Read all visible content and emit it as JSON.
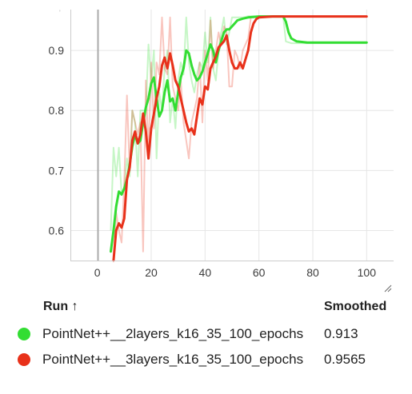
{
  "chart_data": {
    "type": "line",
    "title": "",
    "xlabel": "",
    "ylabel": "",
    "xlim": [
      -10,
      110
    ],
    "ylim": [
      0.55,
      0.968
    ],
    "xticks": [
      0,
      20,
      40,
      60,
      80,
      100
    ],
    "yticks": [
      0.6,
      0.7,
      0.8,
      0.9
    ],
    "grid": true,
    "legend_position": "bottom",
    "series": [
      {
        "name": "PointNet++__2layers_k16_35_100_epochs",
        "color": "#33dd33",
        "smoothed": [
          [
            5,
            0.565
          ],
          [
            6,
            0.6
          ],
          [
            7,
            0.64
          ],
          [
            8,
            0.665
          ],
          [
            9,
            0.66
          ],
          [
            10,
            0.67
          ],
          [
            11,
            0.685
          ],
          [
            12,
            0.71
          ],
          [
            13,
            0.74
          ],
          [
            14,
            0.76
          ],
          [
            15,
            0.745
          ],
          [
            16,
            0.75
          ],
          [
            17,
            0.78
          ],
          [
            18,
            0.805
          ],
          [
            19,
            0.82
          ],
          [
            20,
            0.845
          ],
          [
            21,
            0.855
          ],
          [
            22,
            0.82
          ],
          [
            23,
            0.79
          ],
          [
            24,
            0.8
          ],
          [
            25,
            0.83
          ],
          [
            26,
            0.85
          ],
          [
            27,
            0.815
          ],
          [
            28,
            0.82
          ],
          [
            29,
            0.8
          ],
          [
            30,
            0.83
          ],
          [
            31,
            0.855
          ],
          [
            32,
            0.87
          ],
          [
            33,
            0.9
          ],
          [
            34,
            0.895
          ],
          [
            35,
            0.875
          ],
          [
            36,
            0.86
          ],
          [
            37,
            0.85
          ],
          [
            38,
            0.855
          ],
          [
            39,
            0.865
          ],
          [
            40,
            0.88
          ],
          [
            41,
            0.895
          ],
          [
            42,
            0.91
          ],
          [
            43,
            0.9
          ],
          [
            44,
            0.88
          ],
          [
            45,
            0.9
          ],
          [
            46,
            0.915
          ],
          [
            47,
            0.93
          ],
          [
            48,
            0.935
          ],
          [
            49,
            0.935
          ],
          [
            50,
            0.94
          ],
          [
            51,
            0.945
          ],
          [
            52,
            0.95
          ],
          [
            54,
            0.953
          ],
          [
            56,
            0.955
          ],
          [
            60,
            0.9565
          ],
          [
            65,
            0.9565
          ],
          [
            69,
            0.9565
          ],
          [
            70,
            0.948
          ],
          [
            71,
            0.93
          ],
          [
            72,
            0.92
          ],
          [
            74,
            0.915
          ],
          [
            78,
            0.913
          ],
          [
            100,
            0.913
          ]
        ],
        "raw": [
          [
            5,
            0.6
          ],
          [
            6,
            0.738
          ],
          [
            7,
            0.69
          ],
          [
            8,
            0.738
          ],
          [
            9,
            0.66
          ],
          [
            10,
            0.67
          ],
          [
            11,
            0.72
          ],
          [
            12,
            0.69
          ],
          [
            13,
            0.8
          ],
          [
            14,
            0.78
          ],
          [
            15,
            0.69
          ],
          [
            16,
            0.8
          ],
          [
            17,
            0.8
          ],
          [
            18,
            0.8
          ],
          [
            19,
            0.91
          ],
          [
            20,
            0.85
          ],
          [
            21,
            0.9
          ],
          [
            22,
            0.72
          ],
          [
            23,
            0.83
          ],
          [
            24,
            0.8
          ],
          [
            25,
            0.87
          ],
          [
            26,
            0.9
          ],
          [
            27,
            0.78
          ],
          [
            28,
            0.82
          ],
          [
            29,
            0.77
          ],
          [
            30,
            0.85
          ],
          [
            31,
            0.88
          ],
          [
            32,
            0.86
          ],
          [
            33,
            0.955
          ],
          [
            34,
            0.88
          ],
          [
            35,
            0.85
          ],
          [
            36,
            0.83
          ],
          [
            37,
            0.86
          ],
          [
            38,
            0.88
          ],
          [
            39,
            0.87
          ],
          [
            40,
            0.93
          ],
          [
            41,
            0.88
          ],
          [
            42,
            0.955
          ],
          [
            43,
            0.87
          ],
          [
            44,
            0.85
          ],
          [
            45,
            0.9
          ],
          [
            46,
            0.93
          ],
          [
            47,
            0.955
          ],
          [
            48,
            0.91
          ],
          [
            49,
            0.93
          ],
          [
            50,
            0.955
          ],
          [
            51,
            0.955
          ],
          [
            52,
            0.955
          ],
          [
            54,
            0.955
          ],
          [
            56,
            0.957
          ],
          [
            60,
            0.957
          ],
          [
            69,
            0.957
          ],
          [
            70,
            0.915
          ],
          [
            72,
            0.912
          ],
          [
            100,
            0.912
          ]
        ],
        "value": "0.913"
      },
      {
        "name": "PointNet++__3layers_k16_35_100_epochs",
        "color": "#e8311a",
        "smoothed": [
          [
            6,
            0.55
          ],
          [
            7,
            0.6
          ],
          [
            8,
            0.612
          ],
          [
            9,
            0.605
          ],
          [
            10,
            0.62
          ],
          [
            11,
            0.685
          ],
          [
            12,
            0.705
          ],
          [
            13,
            0.75
          ],
          [
            14,
            0.765
          ],
          [
            15,
            0.745
          ],
          [
            16,
            0.76
          ],
          [
            17,
            0.795
          ],
          [
            18,
            0.765
          ],
          [
            19,
            0.72
          ],
          [
            20,
            0.77
          ],
          [
            21,
            0.795
          ],
          [
            22,
            0.82
          ],
          [
            23,
            0.84
          ],
          [
            24,
            0.875
          ],
          [
            25,
            0.888
          ],
          [
            26,
            0.87
          ],
          [
            27,
            0.895
          ],
          [
            28,
            0.875
          ],
          [
            29,
            0.85
          ],
          [
            30,
            0.84
          ],
          [
            31,
            0.82
          ],
          [
            32,
            0.8
          ],
          [
            33,
            0.78
          ],
          [
            34,
            0.765
          ],
          [
            35,
            0.77
          ],
          [
            36,
            0.76
          ],
          [
            37,
            0.79
          ],
          [
            38,
            0.82
          ],
          [
            39,
            0.81
          ],
          [
            40,
            0.84
          ],
          [
            41,
            0.835
          ],
          [
            42,
            0.87
          ],
          [
            43,
            0.88
          ],
          [
            44,
            0.89
          ],
          [
            45,
            0.905
          ],
          [
            46,
            0.91
          ],
          [
            47,
            0.915
          ],
          [
            48,
            0.925
          ],
          [
            49,
            0.9
          ],
          [
            50,
            0.88
          ],
          [
            51,
            0.87
          ],
          [
            52,
            0.87
          ],
          [
            53,
            0.88
          ],
          [
            54,
            0.87
          ],
          [
            55,
            0.885
          ],
          [
            56,
            0.9
          ],
          [
            57,
            0.93
          ],
          [
            58,
            0.945
          ],
          [
            59,
            0.952
          ],
          [
            60,
            0.955
          ],
          [
            65,
            0.9565
          ],
          [
            100,
            0.9565
          ]
        ],
        "raw": [
          [
            6,
            0.55
          ],
          [
            7,
            0.63
          ],
          [
            8,
            0.6
          ],
          [
            9,
            0.58
          ],
          [
            10,
            0.68
          ],
          [
            11,
            0.825
          ],
          [
            12,
            0.7
          ],
          [
            13,
            0.8
          ],
          [
            14,
            0.78
          ],
          [
            15,
            0.76
          ],
          [
            16,
            0.78
          ],
          [
            17,
            0.565
          ],
          [
            18,
            0.85
          ],
          [
            19,
            0.73
          ],
          [
            20,
            0.88
          ],
          [
            21,
            0.77
          ],
          [
            22,
            0.88
          ],
          [
            23,
            0.86
          ],
          [
            24,
            0.955
          ],
          [
            25,
            0.87
          ],
          [
            26,
            0.86
          ],
          [
            27,
            0.955
          ],
          [
            28,
            0.84
          ],
          [
            29,
            0.82
          ],
          [
            30,
            0.8
          ],
          [
            31,
            0.85
          ],
          [
            32,
            0.78
          ],
          [
            33,
            0.75
          ],
          [
            34,
            0.72
          ],
          [
            35,
            0.78
          ],
          [
            36,
            0.8
          ],
          [
            37,
            0.82
          ],
          [
            38,
            0.88
          ],
          [
            39,
            0.78
          ],
          [
            40,
            0.9
          ],
          [
            41,
            0.85
          ],
          [
            42,
            0.95
          ],
          [
            43,
            0.87
          ],
          [
            44,
            0.9
          ],
          [
            45,
            0.93
          ],
          [
            46,
            0.91
          ],
          [
            47,
            0.94
          ],
          [
            48,
            0.93
          ],
          [
            49,
            0.84
          ],
          [
            50,
            0.84
          ],
          [
            51,
            0.9
          ],
          [
            52,
            0.89
          ],
          [
            53,
            0.87
          ],
          [
            54,
            0.9
          ],
          [
            55,
            0.91
          ],
          [
            56,
            0.92
          ],
          [
            57,
            0.955
          ],
          [
            58,
            0.955
          ],
          [
            60,
            0.957
          ],
          [
            100,
            0.957
          ]
        ],
        "value": "0.9565"
      }
    ]
  },
  "legend": {
    "run_header": "Run ↑",
    "smoothed_header": "Smoothed",
    "rows": [
      {
        "name": "PointNet++__2layers_k16_35_100_epochs",
        "value": "0.913",
        "color": "#33dd33"
      },
      {
        "name": "PointNet++__3layers_k16_35_100_epochs",
        "value": "0.9565",
        "color": "#e8311a"
      }
    ]
  }
}
